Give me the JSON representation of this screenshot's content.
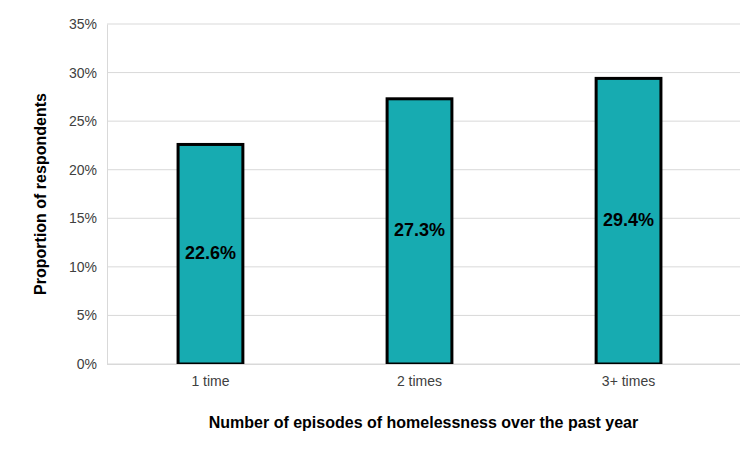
{
  "chart_data": {
    "type": "bar",
    "xlabel": "Number of episodes of homelessness over the past year",
    "ylabel": "Proportion of respondents",
    "categories": [
      "1 time",
      "2 times",
      "3+ times"
    ],
    "values": [
      22.6,
      27.3,
      29.4
    ],
    "value_labels": [
      "22.6%",
      "27.3%",
      "29.4%"
    ],
    "color": "#17abb1",
    "ylim": [
      0,
      35
    ],
    "yticks": [
      {
        "value": 0,
        "label": "0%"
      },
      {
        "value": 5,
        "label": "5%"
      },
      {
        "value": 10,
        "label": "10%"
      },
      {
        "value": 15,
        "label": "15%"
      },
      {
        "value": 20,
        "label": "20%"
      },
      {
        "value": 25,
        "label": "25%"
      },
      {
        "value": 30,
        "label": "30%"
      },
      {
        "value": 35,
        "label": "35%"
      }
    ],
    "grid": true,
    "data_labels": true
  }
}
